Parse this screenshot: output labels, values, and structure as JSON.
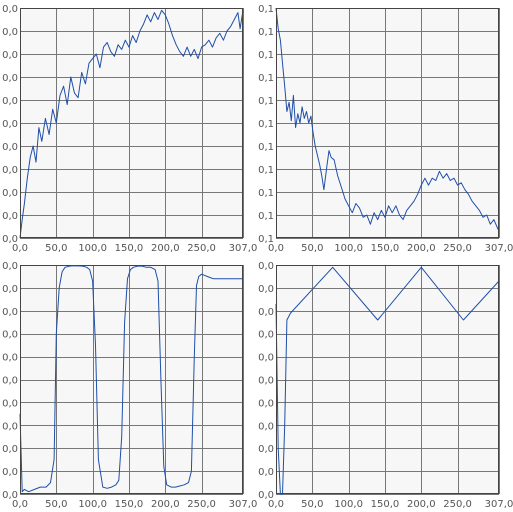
{
  "chart_data": [
    {
      "type": "line",
      "name": "top-left",
      "xlim": [
        0,
        307
      ],
      "ylim": [
        0,
        10
      ],
      "x_ticks": [
        0,
        50,
        100,
        150,
        200,
        250,
        307
      ],
      "x_tick_labels": [
        "0,0",
        "50,0",
        "100,0",
        "150,0",
        "200,0",
        "250,0",
        "307,0"
      ],
      "y_tick_labels": [
        "0,0",
        "0,0",
        "0,0",
        "0,0",
        "0,0",
        "0,0",
        "0,0",
        "0,0",
        "0,0",
        "0,0",
        "0,0"
      ],
      "grid": true,
      "series": [
        {
          "x": [
            0,
            3,
            6,
            10,
            14,
            18,
            22,
            26,
            30,
            35,
            40,
            45,
            50,
            55,
            60,
            65,
            70,
            75,
            80,
            85,
            90,
            95,
            100,
            105,
            110,
            115,
            120,
            125,
            130,
            135,
            140,
            145,
            150,
            155,
            160,
            165,
            170,
            175,
            180,
            185,
            190,
            195,
            200,
            205,
            210,
            215,
            220,
            225,
            230,
            235,
            240,
            245,
            250,
            255,
            260,
            265,
            270,
            275,
            280,
            285,
            290,
            295,
            300,
            303,
            307
          ],
          "y": [
            0.0,
            0.8,
            1.5,
            2.6,
            3.5,
            4.0,
            3.3,
            4.8,
            4.2,
            5.2,
            4.5,
            5.6,
            5.0,
            6.2,
            6.6,
            5.8,
            7.0,
            6.3,
            6.1,
            7.2,
            6.7,
            7.6,
            7.8,
            8.0,
            7.4,
            8.3,
            8.5,
            8.1,
            7.9,
            8.4,
            8.2,
            8.6,
            8.3,
            8.8,
            8.5,
            9.0,
            9.3,
            9.7,
            9.4,
            9.8,
            9.5,
            9.9,
            9.7,
            9.3,
            8.8,
            8.4,
            8.1,
            7.9,
            8.3,
            7.9,
            8.2,
            7.8,
            8.3,
            8.4,
            8.6,
            8.3,
            8.7,
            8.9,
            8.6,
            9.0,
            9.2,
            9.5,
            9.8,
            9.1,
            9.9
          ]
        }
      ]
    },
    {
      "type": "line",
      "name": "top-right",
      "xlim": [
        0,
        307
      ],
      "ylim": [
        0,
        10
      ],
      "x_ticks": [
        0,
        50,
        100,
        150,
        200,
        250,
        307
      ],
      "x_tick_labels": [
        "0,0",
        "50,0",
        "100,0",
        "150,0",
        "200,0",
        "250,0",
        "307,0"
      ],
      "y_tick_labels": [
        "0,1",
        "0,1",
        "0,1",
        "0,1",
        "0,1",
        "0,1",
        "0,1",
        "0,1",
        "0,1",
        "0,1",
        "0,1"
      ],
      "grid": true,
      "series": [
        {
          "x": [
            0,
            3,
            6,
            9,
            12,
            15,
            18,
            21,
            24,
            27,
            30,
            33,
            36,
            39,
            42,
            45,
            48,
            51,
            54,
            57,
            60,
            63,
            66,
            70,
            73,
            76,
            80,
            85,
            90,
            95,
            100,
            105,
            110,
            115,
            120,
            125,
            130,
            135,
            140,
            145,
            150,
            155,
            160,
            165,
            170,
            175,
            180,
            185,
            190,
            195,
            200,
            205,
            210,
            215,
            220,
            225,
            230,
            235,
            240,
            245,
            250,
            255,
            260,
            265,
            270,
            275,
            280,
            285,
            290,
            295,
            300,
            304,
            307
          ],
          "y": [
            10.0,
            9.1,
            8.6,
            7.6,
            6.6,
            5.5,
            5.9,
            5.1,
            6.2,
            4.8,
            5.4,
            5.0,
            5.7,
            5.2,
            5.5,
            5.0,
            5.3,
            4.6,
            4.0,
            3.6,
            3.2,
            2.7,
            2.1,
            3.1,
            3.8,
            3.5,
            3.4,
            2.7,
            2.2,
            1.7,
            1.4,
            1.1,
            1.5,
            1.3,
            0.9,
            1.0,
            0.6,
            1.1,
            0.8,
            1.2,
            0.9,
            1.4,
            1.1,
            1.4,
            1.0,
            0.8,
            1.2,
            1.4,
            1.6,
            1.9,
            2.3,
            2.6,
            2.3,
            2.6,
            2.5,
            2.9,
            2.6,
            2.8,
            2.5,
            2.6,
            2.3,
            2.4,
            2.1,
            1.9,
            1.6,
            1.4,
            1.2,
            0.9,
            1.0,
            0.6,
            0.8,
            0.5,
            0.3
          ]
        }
      ]
    },
    {
      "type": "line",
      "name": "bottom-left",
      "xlim": [
        0,
        307
      ],
      "ylim": [
        0,
        10
      ],
      "x_ticks": [
        0,
        50,
        100,
        150,
        200,
        250,
        307
      ],
      "x_tick_labels": [
        "0,0",
        "50,0",
        "100,0",
        "150,0",
        "200,0",
        "250,0",
        "307,0"
      ],
      "y_tick_labels": [
        "0,0",
        "0,0",
        "0,0",
        "0,0",
        "0,0",
        "0,0",
        "0,0",
        "0,0",
        "0,0",
        "0,0",
        "0,0"
      ],
      "grid": true,
      "series": [
        {
          "x": [
            0,
            3,
            6,
            12,
            20,
            28,
            36,
            42,
            47,
            50,
            54,
            58,
            62,
            68,
            74,
            80,
            86,
            92,
            96,
            100,
            104,
            108,
            114,
            120,
            126,
            132,
            136,
            140,
            144,
            148,
            152,
            156,
            162,
            168,
            174,
            180,
            186,
            190,
            194,
            198,
            202,
            208,
            214,
            220,
            226,
            232,
            236,
            240,
            243,
            246,
            250,
            254,
            258,
            262,
            266,
            270,
            274,
            280,
            288,
            296,
            303,
            307
          ],
          "y": [
            3.5,
            0.1,
            0.2,
            0.1,
            0.2,
            0.3,
            0.3,
            0.5,
            1.5,
            7.0,
            9.0,
            9.7,
            9.9,
            9.95,
            9.97,
            9.96,
            9.95,
            9.9,
            9.8,
            9.3,
            6.5,
            1.5,
            0.3,
            0.25,
            0.3,
            0.4,
            0.6,
            2.5,
            7.5,
            9.4,
            9.8,
            9.9,
            9.95,
            9.95,
            9.9,
            9.9,
            9.8,
            9.3,
            5.0,
            1.2,
            0.4,
            0.3,
            0.3,
            0.35,
            0.4,
            0.5,
            1.0,
            6.0,
            9.1,
            9.5,
            9.6,
            9.55,
            9.5,
            9.45,
            9.4,
            9.4,
            9.4,
            9.4,
            9.4,
            9.4,
            9.4,
            9.4
          ]
        }
      ]
    },
    {
      "type": "line",
      "name": "bottom-right",
      "xlim": [
        0,
        307
      ],
      "ylim": [
        0,
        10
      ],
      "x_ticks": [
        0,
        50,
        100,
        150,
        200,
        250,
        307
      ],
      "x_tick_labels": [
        "0,0",
        "50,0",
        "100,0",
        "150,0",
        "200,0",
        "250,0",
        "307,0"
      ],
      "y_tick_labels": [
        "0,0",
        "0,0",
        "0,0",
        "0,0",
        "0,0",
        "0,0",
        "0,0",
        "0,0",
        "0,0",
        "0,0",
        "0,0"
      ],
      "grid": true,
      "series": [
        {
          "x": [
            0,
            3,
            6,
            9,
            12,
            15,
            20,
            78,
            140,
            200,
            258,
            307
          ],
          "y": [
            8.3,
            2.0,
            0.0,
            0.0,
            3.0,
            7.6,
            7.9,
            9.9,
            7.6,
            9.9,
            7.6,
            9.3
          ]
        }
      ]
    }
  ]
}
